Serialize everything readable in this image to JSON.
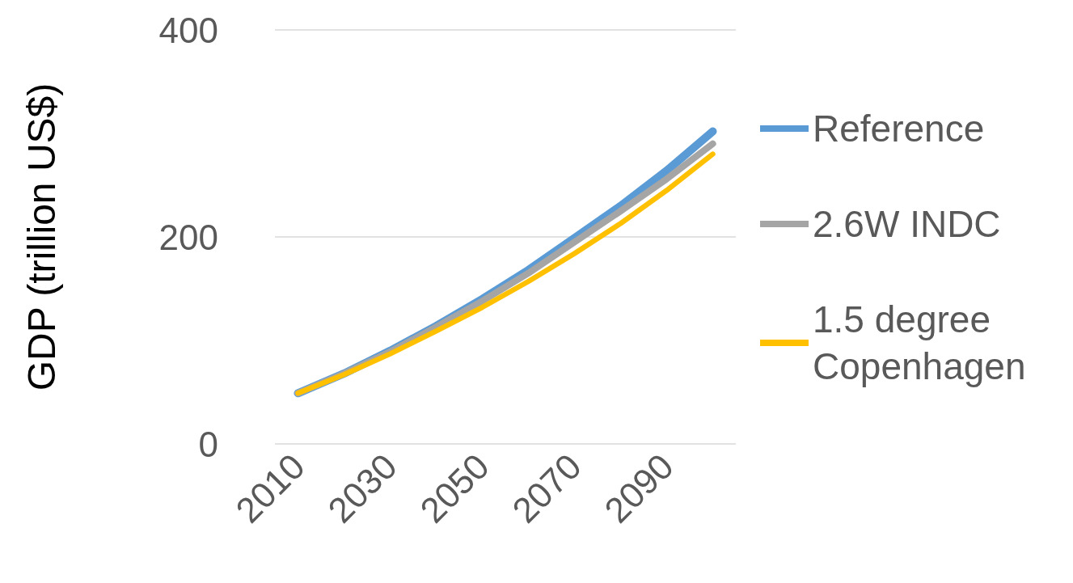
{
  "chart_data": {
    "type": "line",
    "ylabel": "GDP (trillion US$)",
    "categories": [
      "2010",
      null,
      "2030",
      null,
      "2050",
      null,
      "2070",
      null,
      "2090",
      null
    ],
    "series": [
      {
        "name": "Reference",
        "color": "#5b9bd5",
        "values": [
          49,
          68,
          90,
          114,
          140,
          168,
          199,
          230,
          264,
          302
        ]
      },
      {
        "name": "2.6W INDC",
        "color": "#a5a5a5",
        "values": [
          49,
          68,
          89,
          113,
          138,
          165,
          195,
          225,
          256,
          290
        ]
      },
      {
        "name": "1.5 degree Copenhagen",
        "color": "#ffc000",
        "values": [
          49,
          67,
          87,
          109,
          132,
          157,
          184,
          213,
          245,
          280
        ]
      }
    ],
    "ylim": [
      0,
      400
    ],
    "yticks": [
      0,
      200,
      400
    ],
    "grid": "y",
    "legend": "right",
    "marker": "none",
    "line_style": "solid"
  }
}
